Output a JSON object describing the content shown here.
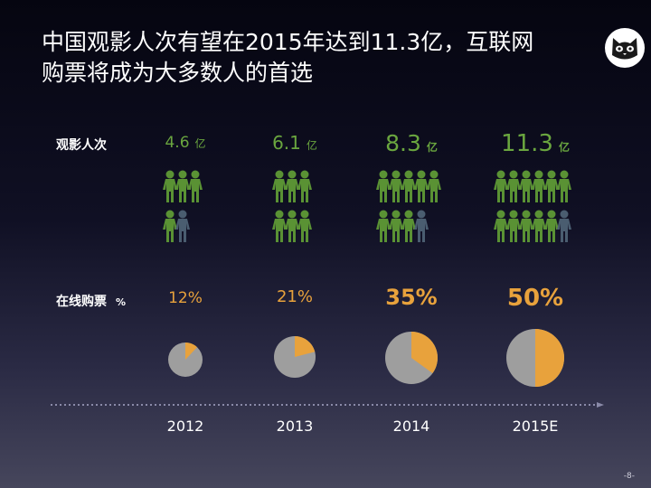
{
  "title": {
    "line1": "中国观影人次有望在2015年达到11.3亿，互联网",
    "line2": "购票将成为大多数人的首选"
  },
  "logo_icon": "cat-face-icon",
  "rows": {
    "audience_label": "观影人次",
    "online_label": "在线购票",
    "online_unit": "%"
  },
  "chart_data": {
    "type": "table",
    "categories": [
      "2012",
      "2013",
      "2014",
      "2015E"
    ],
    "series": [
      {
        "name": "观影人次",
        "values": [
          4.6,
          6.1,
          8.3,
          11.3
        ],
        "unit": "亿"
      },
      {
        "name": "在线购票",
        "values": [
          12,
          21,
          35,
          50
        ],
        "unit": "%"
      }
    ]
  },
  "columns": [
    {
      "year": "2012",
      "count": "4.6",
      "count_unit": "亿",
      "pct": "12%",
      "pct_value": 12,
      "count_value": 4.6
    },
    {
      "year": "2013",
      "count": "6.1",
      "count_unit": "亿",
      "pct": "21%",
      "pct_value": 21,
      "count_value": 6.1
    },
    {
      "year": "2014",
      "count": "8.3",
      "count_unit": "亿",
      "pct": "35%",
      "pct_value": 35,
      "count_value": 8.3
    },
    {
      "year": "2015E",
      "count": "11.3",
      "count_unit": "亿",
      "pct": "50%",
      "pct_value": 50,
      "count_value": 11.3
    }
  ],
  "page_number": "-8-",
  "colors": {
    "person_green": "#5a9234",
    "person_gray": "#4a5d70",
    "pie_orange": "#e8a23c",
    "pie_gray": "#9e9e9e",
    "value_green": "#6aa63f"
  }
}
